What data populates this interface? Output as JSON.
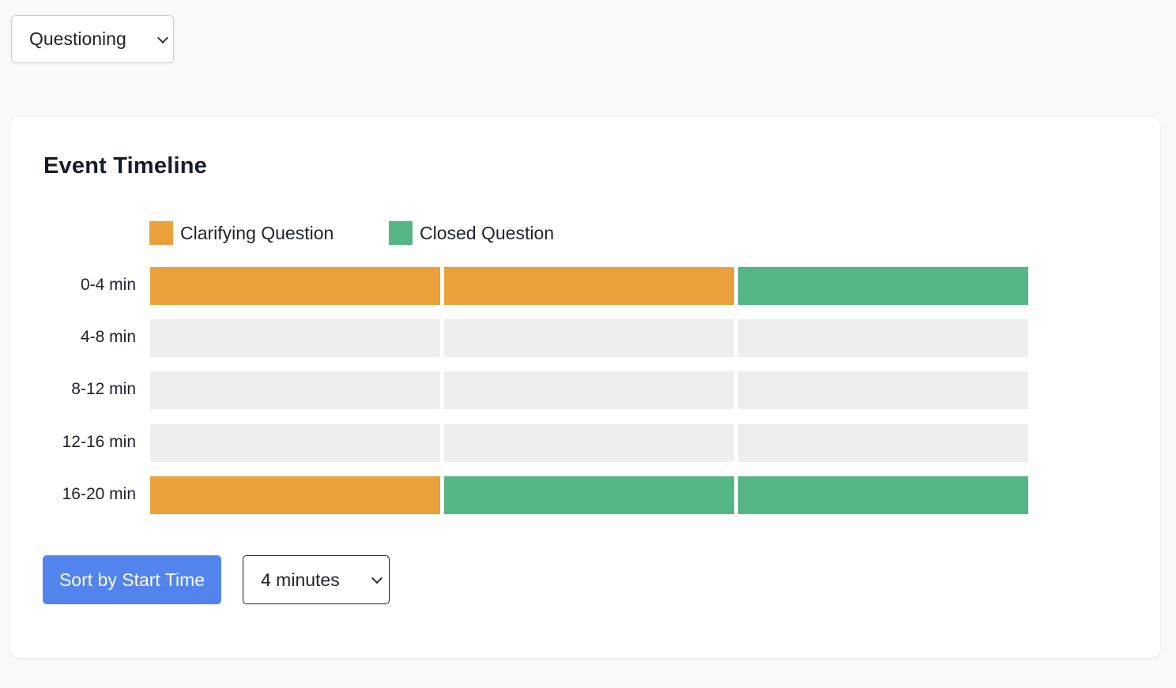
{
  "filter": {
    "selected": "Questioning"
  },
  "timeline": {
    "title": "Event Timeline",
    "legend": [
      {
        "label": "Clarifying Question",
        "color": "#eaa13b"
      },
      {
        "label": "Closed Question",
        "color": "#54b685"
      }
    ],
    "empty_color": "#eeeeee",
    "rows": [
      {
        "label": "0-4 min",
        "slots": [
          "Clarifying Question",
          "Clarifying Question",
          "Closed Question"
        ]
      },
      {
        "label": "4-8 min",
        "slots": [
          null,
          null,
          null
        ]
      },
      {
        "label": "8-12 min",
        "slots": [
          null,
          null,
          null
        ]
      },
      {
        "label": "12-16 min",
        "slots": [
          null,
          null,
          null
        ]
      },
      {
        "label": "16-20 min",
        "slots": [
          "Clarifying Question",
          "Closed Question",
          "Closed Question"
        ]
      }
    ]
  },
  "controls": {
    "sort_label": "Sort by Start Time",
    "interval_selected": "4 minutes"
  }
}
